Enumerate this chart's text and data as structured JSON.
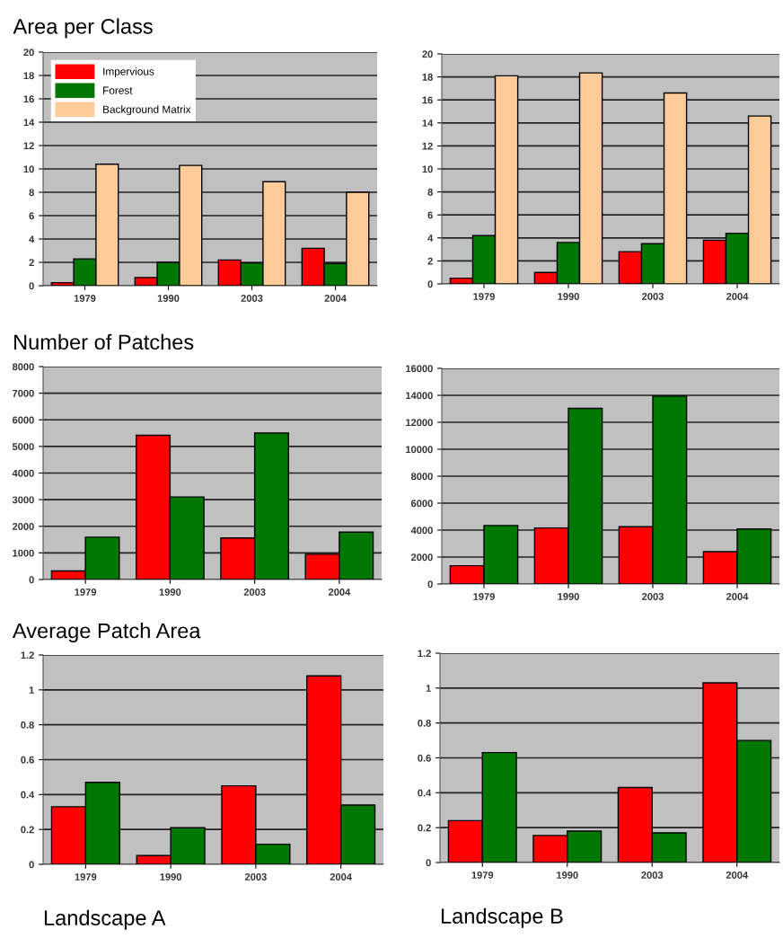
{
  "chart_data": [
    {
      "type": "bar",
      "title": "Area per Class",
      "categories": [
        "1979",
        "1990",
        "2003",
        "2004"
      ],
      "ylim": [
        0,
        20
      ],
      "yticks": [
        0,
        2,
        4,
        6,
        8,
        10,
        12,
        14,
        16,
        18,
        20
      ],
      "grid": "y",
      "legend": "top left",
      "series": [
        {
          "name": "Impervious",
          "color": "#ff0000",
          "values": [
            0.26,
            0.7,
            2.2,
            3.2
          ]
        },
        {
          "name": "Forest",
          "color": "#007800",
          "values": [
            2.3,
            2.0,
            1.95,
            1.9
          ]
        },
        {
          "name": "Background Matrix",
          "color": "#ffcc99",
          "values": [
            10.4,
            10.3,
            8.9,
            8.0
          ]
        }
      ]
    },
    {
      "type": "bar",
      "categories": [
        "1979",
        "1990",
        "2003",
        "2004"
      ],
      "ylim": [
        0,
        20
      ],
      "yticks": [
        0,
        2,
        4,
        6,
        8,
        10,
        12,
        14,
        16,
        18,
        20
      ],
      "grid": "y",
      "series": [
        {
          "color": "#ff0000",
          "values": [
            0.5,
            1.0,
            2.8,
            3.8
          ]
        },
        {
          "color": "#007800",
          "values": [
            4.2,
            3.6,
            3.5,
            4.4
          ]
        },
        {
          "color": "#ffcc99",
          "values": [
            18.1,
            18.35,
            16.6,
            14.6
          ]
        }
      ]
    },
    {
      "type": "bar",
      "title": "Number of Patches",
      "categories": [
        "1979",
        "1990",
        "2003",
        "2004"
      ],
      "ylim": [
        0,
        8000
      ],
      "yticks": [
        0,
        1000,
        2000,
        3000,
        4000,
        5000,
        6000,
        7000,
        8000
      ],
      "grid": "y",
      "series": [
        {
          "color": "#ff0000",
          "values": [
            320,
            5420,
            1560,
            950
          ]
        },
        {
          "color": "#007800",
          "values": [
            1590,
            3100,
            5500,
            1780
          ]
        }
      ]
    },
    {
      "type": "bar",
      "categories": [
        "1979",
        "1990",
        "2003",
        "2004"
      ],
      "ylim": [
        0,
        16000
      ],
      "yticks": [
        0,
        2000,
        4000,
        6000,
        8000,
        10000,
        12000,
        14000,
        16000
      ],
      "grid": "y",
      "series": [
        {
          "color": "#ff0000",
          "values": [
            1360,
            4160,
            4250,
            2400
          ]
        },
        {
          "color": "#007800",
          "values": [
            4340,
            13030,
            13940,
            4080
          ]
        }
      ]
    },
    {
      "type": "bar",
      "title": "Average Patch Area",
      "xlabel": "Landscape A",
      "categories": [
        "1979",
        "1990",
        "2003",
        "2004"
      ],
      "ylim": [
        0,
        1.2
      ],
      "yticks": [
        0,
        0.2,
        0.4,
        0.6,
        0.8,
        1,
        1.2
      ],
      "grid": "y",
      "series": [
        {
          "color": "#ff0000",
          "values": [
            0.33,
            0.05,
            0.45,
            1.08
          ]
        },
        {
          "color": "#007800",
          "values": [
            0.47,
            0.21,
            0.115,
            0.34
          ]
        }
      ]
    },
    {
      "type": "bar",
      "xlabel": "Landscape B",
      "categories": [
        "1979",
        "1990",
        "2003",
        "2004"
      ],
      "ylim": [
        0,
        1.2
      ],
      "yticks": [
        0,
        0.2,
        0.4,
        0.6,
        0.8,
        1,
        1.2
      ],
      "grid": "y",
      "series": [
        {
          "color": "#ff0000",
          "values": [
            0.24,
            0.155,
            0.43,
            1.03
          ]
        },
        {
          "color": "#007800",
          "values": [
            0.63,
            0.18,
            0.17,
            0.7
          ]
        }
      ]
    }
  ]
}
